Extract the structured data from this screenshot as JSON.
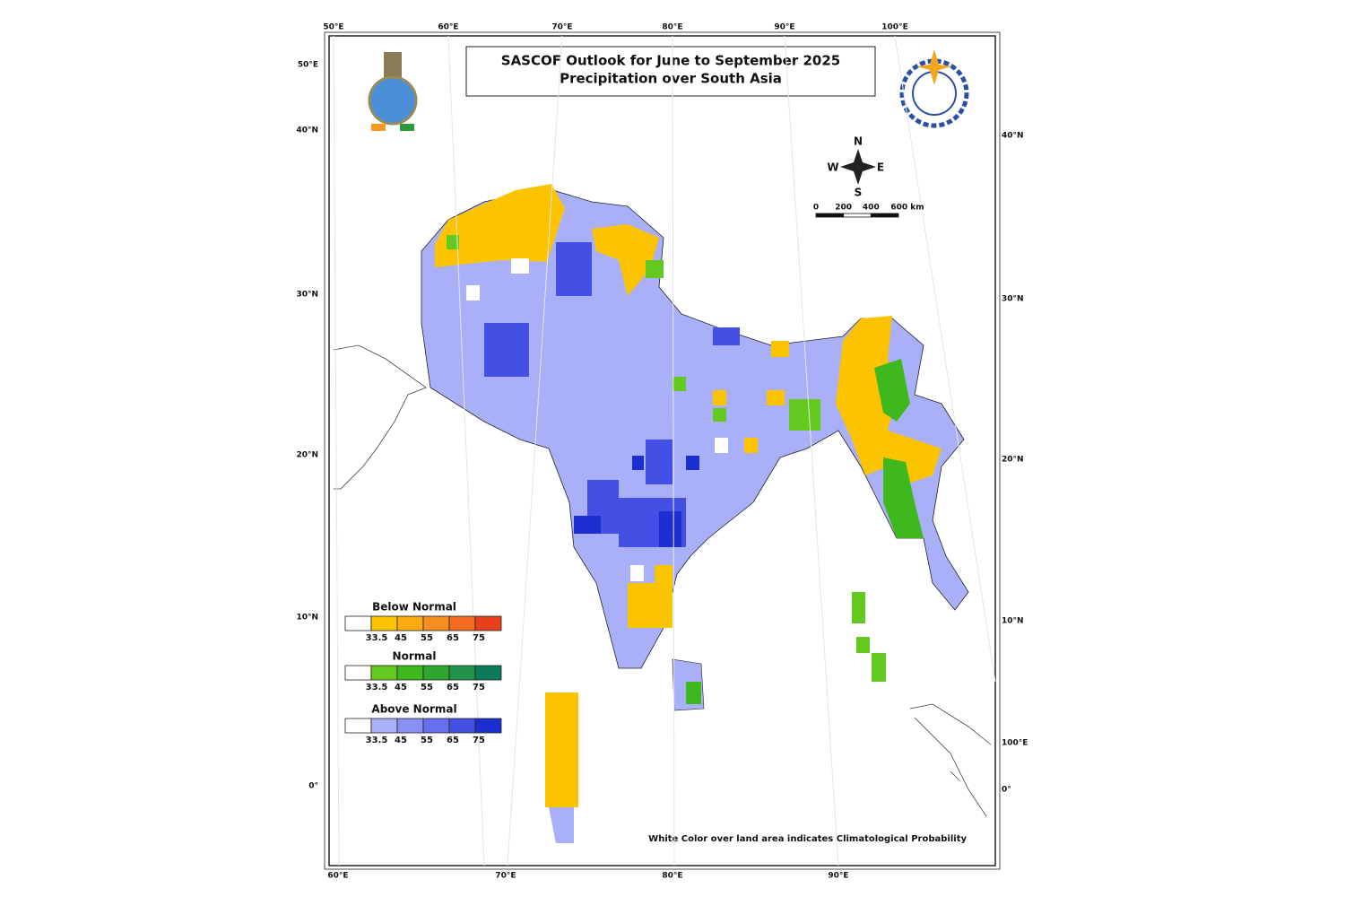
{
  "header": {
    "title": [
      "SASCOF Outlook for June to September 2025",
      "Precipitation over South Asia"
    ]
  },
  "frame": {
    "top_labels": [
      "50°E",
      "60°E",
      "70°E",
      "80°E",
      "90°E",
      "100°E"
    ],
    "left_labels": [
      "50°E",
      "40°N",
      "30°N",
      "20°N",
      "10°N",
      "0°"
    ],
    "right_labels": [
      "40°N",
      "30°N",
      "20°N",
      "10°N",
      "100°E",
      "0°"
    ],
    "bottom_labels": [
      "60°E",
      "70°E",
      "80°E",
      "90°E"
    ]
  },
  "compass": {
    "n": "N",
    "e": "E",
    "s": "S",
    "w": "W"
  },
  "scale": {
    "ticks": [
      0,
      200,
      400,
      {
        "value": 600,
        "label": "600 km"
      }
    ]
  },
  "legend": [
    {
      "title": "Below Normal",
      "colors": [
        "#ffffff",
        "#fcc400",
        "#f9ab10",
        "#f78e22",
        "#f46b22",
        "#e8401c"
      ],
      "ticks": [
        33.5,
        45,
        55,
        65,
        75
      ]
    },
    {
      "title": "Normal",
      "colors": [
        "#ffffff",
        "#63c91e",
        "#3fb81e",
        "#2fa62d",
        "#21944a",
        "#0e7a5c"
      ],
      "ticks": [
        33.5,
        45,
        55,
        65,
        75
      ]
    },
    {
      "title": "Above Normal",
      "colors": [
        "#ffffff",
        "#aab0f8",
        "#8890f4",
        "#6670ef",
        "#4450e4",
        "#1d2fd0"
      ],
      "ticks": [
        33.5,
        45,
        55,
        65,
        75
      ]
    }
  ],
  "note": "White Color over land area indicates Climatological Probability"
}
